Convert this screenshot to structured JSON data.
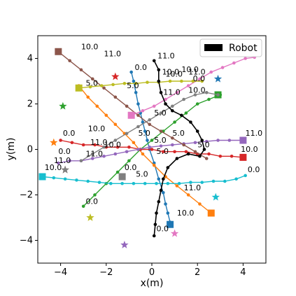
{
  "chart_data": {
    "type": "scatter",
    "xlabel": "x(m)",
    "ylabel": "y(m)",
    "xlim": [
      -5,
      5
    ],
    "ylim": [
      -5,
      5
    ],
    "xticks": [
      -4,
      -2,
      0,
      2,
      4
    ],
    "yticks": [
      -4,
      -2,
      0,
      2,
      4
    ],
    "xtick_labels": [
      "−4",
      "−2",
      "0",
      "2",
      "4"
    ],
    "ytick_labels": [
      "−4",
      "−2",
      "0",
      "2",
      "4"
    ],
    "grid": false,
    "legend": {
      "position": "top-right",
      "entries": [
        {
          "label": "Robot",
          "color": "#000000"
        }
      ]
    },
    "series": [
      {
        "color": "#1f77b4",
        "path": [
          [
            -0.9,
            3.4
          ],
          [
            -0.8,
            3.0
          ],
          [
            -0.7,
            2.5
          ],
          [
            -0.6,
            2.0
          ],
          [
            -0.5,
            1.6
          ],
          [
            -0.4,
            1.2
          ],
          [
            -0.3,
            0.8
          ],
          [
            -0.2,
            0.4
          ],
          [
            -0.1,
            0.0
          ],
          [
            0.1,
            -0.6
          ],
          [
            0.3,
            -1.3
          ],
          [
            0.5,
            -1.9
          ],
          [
            0.6,
            -2.4
          ],
          [
            0.7,
            -2.8
          ],
          [
            0.8,
            -3.2
          ]
        ],
        "end": [
          0.8,
          -3.3
        ],
        "goal": [
          2.9,
          3.1
        ],
        "time_labels": [
          {
            "text": "0.0",
            "x": -0.75,
            "y": 3.5
          },
          {
            "text": "5.0",
            "x": -1.1,
            "y": 2.7
          },
          {
            "text": "10.0",
            "x": 1.1,
            "y": -2.9
          }
        ]
      },
      {
        "color": "#ff7f0e",
        "path": [
          [
            -3.2,
            2.8
          ],
          [
            -2.8,
            2.3
          ],
          [
            -2.4,
            1.9
          ],
          [
            -2.0,
            1.5
          ],
          [
            -1.6,
            1.1
          ],
          [
            -1.2,
            0.7
          ],
          [
            -0.8,
            0.3
          ],
          [
            -0.4,
            -0.2
          ],
          [
            0.1,
            -0.7
          ],
          [
            0.6,
            -1.2
          ],
          [
            1.1,
            -1.6
          ],
          [
            1.6,
            -2.0
          ],
          [
            2.1,
            -2.4
          ],
          [
            2.6,
            -2.8
          ]
        ],
        "end": [
          2.6,
          -2.8
        ],
        "goal": [
          -4.3,
          0.3
        ],
        "time_labels": [
          {
            "text": "5.0",
            "x": -0.6,
            "y": 0.6
          },
          {
            "text": "11.0",
            "x": 1.4,
            "y": -1.8
          }
        ]
      },
      {
        "color": "#2ca02c",
        "path": [
          [
            -3.0,
            -2.5
          ],
          [
            -2.5,
            -2.0
          ],
          [
            -2.0,
            -1.5
          ],
          [
            -1.5,
            -1.0
          ],
          [
            -1.0,
            -0.5
          ],
          [
            -0.5,
            0.0
          ],
          [
            0.0,
            0.4
          ],
          [
            0.5,
            0.8
          ],
          [
            1.0,
            1.2
          ],
          [
            1.5,
            1.6
          ],
          [
            2.0,
            2.0
          ],
          [
            2.5,
            2.2
          ],
          [
            3.0,
            2.4
          ]
        ],
        "end": [
          2.9,
          2.4
        ],
        "goal": [
          -3.9,
          1.9
        ],
        "time_labels": [
          {
            "text": "0.0",
            "x": -2.9,
            "y": -2.4
          },
          {
            "text": "5.0",
            "x": 0.1,
            "y": 1.5
          },
          {
            "text": "10.0",
            "x": 1.6,
            "y": 2.5
          }
        ]
      },
      {
        "color": "#d62728",
        "path": [
          [
            -4.0,
            0.4
          ],
          [
            -3.5,
            0.3
          ],
          [
            -3.0,
            0.2
          ],
          [
            -2.5,
            0.2
          ],
          [
            -2.0,
            0.1
          ],
          [
            -1.5,
            0.1
          ],
          [
            -1.0,
            0.1
          ],
          [
            -0.5,
            0.0
          ],
          [
            0.0,
            0.0
          ],
          [
            0.5,
            -0.1
          ],
          [
            1.0,
            -0.1
          ],
          [
            1.5,
            -0.1
          ],
          [
            2.0,
            -0.2
          ],
          [
            2.5,
            -0.2
          ],
          [
            3.0,
            -0.3
          ],
          [
            3.5,
            -0.3
          ],
          [
            4.0,
            -0.35
          ]
        ],
        "end": [
          4.0,
          -0.35
        ],
        "goal": [
          -1.6,
          3.2
        ],
        "time_labels": [
          {
            "text": "0.0",
            "x": -3.9,
            "y": 0.6
          },
          {
            "text": "5.0",
            "x": 0.1,
            "y": 0.3
          },
          {
            "text": "10.0",
            "x": 3.9,
            "y": -0.1
          }
        ]
      },
      {
        "color": "#9467bd",
        "path": [
          [
            -4.1,
            -0.6
          ],
          [
            -3.6,
            -0.5
          ],
          [
            -3.1,
            -0.5
          ],
          [
            -2.6,
            -0.4
          ],
          [
            -2.1,
            -0.3
          ],
          [
            -1.6,
            -0.2
          ],
          [
            -1.1,
            -0.1
          ],
          [
            -0.6,
            0.0
          ],
          [
            -0.1,
            0.1
          ],
          [
            0.4,
            0.15
          ],
          [
            0.9,
            0.2
          ],
          [
            1.4,
            0.25
          ],
          [
            1.9,
            0.3
          ],
          [
            2.4,
            0.35
          ],
          [
            2.9,
            0.4
          ],
          [
            3.4,
            0.4
          ],
          [
            4.0,
            0.4
          ]
        ],
        "end": [
          4.0,
          0.4
        ],
        "goal": [
          -1.2,
          -4.2
        ],
        "time_labels": [
          {
            "text": "0.0",
            "x": -4.1,
            "y": -0.2
          },
          {
            "text": "11.0",
            "x": -4.3,
            "y": -0.6
          },
          {
            "text": "5.0",
            "x": 0.2,
            "y": -0.2
          },
          {
            "text": "11.0",
            "x": 4.1,
            "y": 0.6
          }
        ]
      },
      {
        "color": "#8c564b",
        "path": [
          [
            -4.1,
            4.3
          ],
          [
            -3.6,
            3.9
          ],
          [
            -3.1,
            3.5
          ],
          [
            -2.6,
            3.1
          ],
          [
            -2.1,
            2.7
          ],
          [
            -1.6,
            2.3
          ],
          [
            -1.1,
            1.9
          ],
          [
            -0.6,
            1.5
          ],
          [
            -0.1,
            1.1
          ],
          [
            0.4,
            0.8
          ],
          [
            0.9,
            0.5
          ],
          [
            1.4,
            0.2
          ],
          [
            1.9,
            -0.1
          ],
          [
            2.4,
            -0.4
          ]
        ],
        "end": [
          -4.1,
          4.3
        ],
        "goal": [
          -3.8,
          -0.9
        ],
        "time_labels": [
          {
            "text": "10.0",
            "x": -3.1,
            "y": 4.4
          },
          {
            "text": "11.0",
            "x": -2.1,
            "y": 4.1
          },
          {
            "text": "5.0",
            "x": 2.0,
            "y": 0.1
          }
        ]
      },
      {
        "color": "#e377c2",
        "path": [
          [
            -0.9,
            1.5
          ],
          [
            -0.4,
            1.7
          ],
          [
            0.1,
            1.9
          ],
          [
            0.6,
            2.2
          ],
          [
            1.1,
            2.5
          ],
          [
            1.6,
            2.8
          ],
          [
            2.1,
            3.1
          ],
          [
            2.6,
            3.4
          ],
          [
            3.1,
            3.6
          ],
          [
            3.6,
            3.8
          ],
          [
            4.1,
            4.0
          ],
          [
            4.5,
            4.05
          ]
        ],
        "end": [
          -0.9,
          1.5
        ],
        "goal": [
          1.0,
          -3.7
        ],
        "time_labels": [
          {
            "text": "10.0",
            "x": 0.6,
            "y": 3.2
          },
          {
            "text": "10.0",
            "x": 1.3,
            "y": 3.4
          },
          {
            "text": "11.0",
            "x": 1.6,
            "y": 3.3
          }
        ]
      },
      {
        "color": "#7f7f7f",
        "path": [
          [
            -3.1,
            -0.5
          ],
          [
            -2.6,
            -0.2
          ],
          [
            -2.1,
            0.1
          ],
          [
            -1.6,
            0.4
          ],
          [
            -1.1,
            0.7
          ],
          [
            -0.6,
            1.0
          ],
          [
            -0.1,
            1.3
          ],
          [
            0.4,
            1.6
          ],
          [
            0.9,
            1.9
          ],
          [
            1.4,
            2.2
          ],
          [
            1.9,
            2.4
          ],
          [
            2.4,
            2.5
          ],
          [
            2.9,
            2.4
          ]
        ],
        "end": [
          -1.3,
          -1.2
        ],
        "goal": [
          -3.8,
          -0.9
        ],
        "time_labels": [
          {
            "text": "11.0",
            "x": -2.9,
            "y": -0.3
          },
          {
            "text": "10.0",
            "x": -2.1,
            "y": 0.1
          },
          {
            "text": "0.0",
            "x": -1.2,
            "y": -0.9
          },
          {
            "text": "11.0",
            "x": 0.5,
            "y": 2.4
          }
        ]
      },
      {
        "color": "#bcbd22",
        "path": [
          [
            -3.2,
            2.7
          ],
          [
            -2.7,
            2.75
          ],
          [
            -2.2,
            2.8
          ],
          [
            -1.7,
            2.85
          ],
          [
            -1.2,
            2.9
          ],
          [
            -0.7,
            2.9
          ],
          [
            -0.2,
            2.95
          ],
          [
            0.3,
            2.95
          ],
          [
            0.8,
            3.0
          ],
          [
            1.3,
            3.0
          ],
          [
            1.8,
            3.0
          ],
          [
            2.2,
            3.0
          ]
        ],
        "end": [
          -3.2,
          2.7
        ],
        "goal": [
          -2.7,
          -3.0
        ],
        "time_labels": [
          {
            "text": "5.0",
            "x": -2.9,
            "y": 2.8
          },
          {
            "text": "10.0",
            "x": -2.8,
            "y": 0.8
          },
          {
            "text": "11.0",
            "x": -2.7,
            "y": 0.2
          },
          {
            "text": "0.0",
            "x": 1.8,
            "y": 3.0
          }
        ]
      },
      {
        "color": "#17becf",
        "path": [
          [
            -4.8,
            -1.2
          ],
          [
            -4.3,
            -1.25
          ],
          [
            -3.8,
            -1.3
          ],
          [
            -3.3,
            -1.35
          ],
          [
            -2.8,
            -1.4
          ],
          [
            -2.3,
            -1.45
          ],
          [
            -1.8,
            -1.5
          ],
          [
            -1.3,
            -1.5
          ],
          [
            -0.8,
            -1.5
          ],
          [
            -0.3,
            -1.5
          ],
          [
            0.2,
            -1.5
          ],
          [
            0.7,
            -1.5
          ],
          [
            1.2,
            -1.5
          ],
          [
            1.7,
            -1.45
          ],
          [
            2.2,
            -1.45
          ],
          [
            2.7,
            -1.4
          ],
          [
            3.2,
            -1.4
          ],
          [
            3.7,
            -1.3
          ],
          [
            4.1,
            -1.15
          ]
        ],
        "end": [
          -4.8,
          -1.2
        ],
        "goal": [
          2.8,
          -2.1
        ],
        "time_labels": [
          {
            "text": "10.0",
            "x": -4.7,
            "y": -0.9
          },
          {
            "text": "5.0",
            "x": -0.7,
            "y": -1.2
          },
          {
            "text": "0.0",
            "x": 4.2,
            "y": -1.0
          }
        ]
      },
      {
        "color": "#000000",
        "is_robot": true,
        "path": [
          [
            0.1,
            3.9
          ],
          [
            0.3,
            3.5
          ],
          [
            0.3,
            3.0
          ],
          [
            0.4,
            2.5
          ],
          [
            0.6,
            2.0
          ],
          [
            0.9,
            1.7
          ],
          [
            1.3,
            1.5
          ],
          [
            1.7,
            1.2
          ],
          [
            2.0,
            0.8
          ],
          [
            2.2,
            0.4
          ],
          [
            2.3,
            0.0
          ],
          [
            2.1,
            -0.3
          ],
          [
            1.6,
            -0.2
          ],
          [
            1.1,
            -0.4
          ],
          [
            0.7,
            -0.8
          ],
          [
            0.5,
            -1.3
          ],
          [
            0.4,
            -1.8
          ],
          [
            0.3,
            -2.3
          ],
          [
            0.2,
            -2.8
          ],
          [
            0.15,
            -3.3
          ],
          [
            0.1,
            -3.8
          ]
        ],
        "time_labels": [
          {
            "text": "11.0",
            "x": 0.25,
            "y": 4.0
          },
          {
            "text": "10.0",
            "x": 0.45,
            "y": 3.3
          },
          {
            "text": "5.0",
            "x": 0.9,
            "y": 0.6
          },
          {
            "text": "0.0",
            "x": 0.2,
            "y": -3.6
          }
        ]
      }
    ]
  }
}
